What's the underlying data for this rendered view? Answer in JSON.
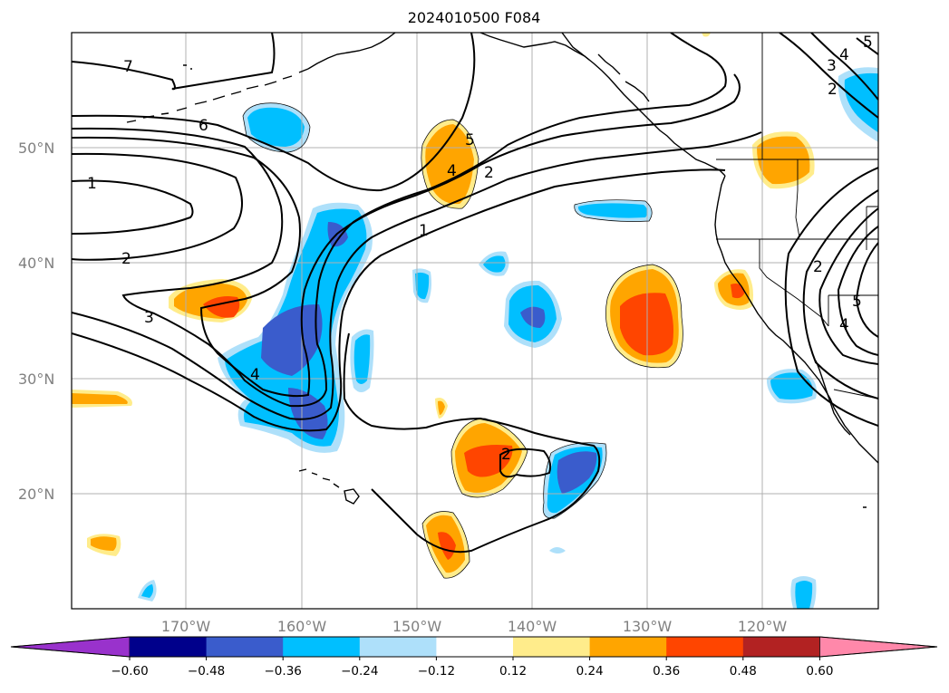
{
  "title": "2024010500 F084",
  "lat_labels": [
    "50°N",
    "40°N",
    "30°N",
    "20°N"
  ],
  "lon_labels": [
    "170°W",
    "160°W",
    "150°W",
    "140°W",
    "130°W",
    "120°W"
  ],
  "contour_labels": [
    "7",
    "6",
    "1",
    "2",
    "3",
    "4",
    "5",
    "4",
    "2",
    "1",
    "2",
    "3",
    "4",
    "5",
    "2",
    "2",
    "4",
    "5"
  ],
  "colorbar": {
    "ticks": [
      "−0.60",
      "−0.48",
      "−0.36",
      "−0.24",
      "−0.12",
      "0.12",
      "0.24",
      "0.36",
      "0.48",
      "0.60"
    ],
    "colors": [
      "#9932cc",
      "#00008b",
      "#3a5ccc",
      "#00bfff",
      "#aee0fa",
      "#ffffff",
      "#ffec8b",
      "#ffa500",
      "#ff4500",
      "#b22222",
      "#ff88aa"
    ]
  },
  "map": {
    "lon_range": [
      "180°",
      "110°W"
    ],
    "lat_range": [
      "10°N",
      "60°N"
    ],
    "gridlines": true,
    "fields": [
      "shaded anomaly",
      "black contours"
    ]
  }
}
